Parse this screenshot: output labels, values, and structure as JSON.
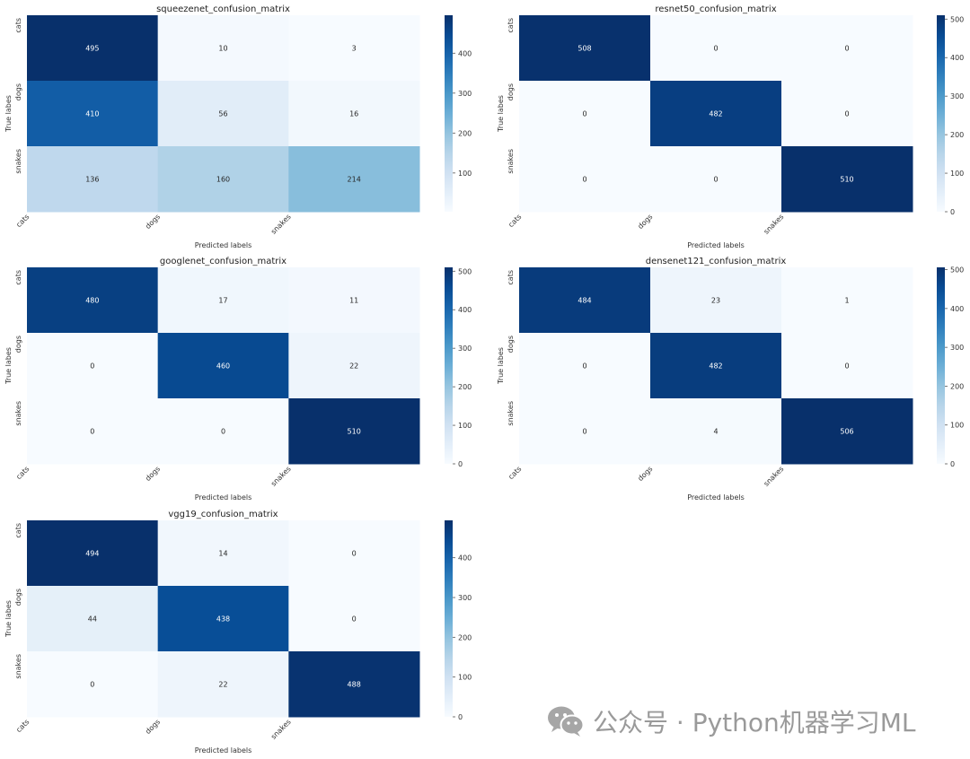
{
  "chart_data": [
    {
      "type": "heatmap",
      "title": "squeezenet_confusion_matrix",
      "xlabel": "Predicted labels",
      "ylabel": "True labes",
      "x_categories": [
        "cats",
        "dogs",
        "snakes"
      ],
      "y_categories": [
        "cats",
        "dogs",
        "snakes"
      ],
      "matrix": [
        [
          495,
          10,
          3
        ],
        [
          410,
          56,
          16
        ],
        [
          136,
          160,
          214
        ]
      ],
      "colormap": "Blues",
      "vmin": 3,
      "vmax": 495,
      "colorbar_ticks": [
        100,
        200,
        300,
        400
      ]
    },
    {
      "type": "heatmap",
      "title": "resnet50_confusion_matrix",
      "xlabel": "Predicted labels",
      "ylabel": "True labes",
      "x_categories": [
        "cats",
        "dogs",
        "snakes"
      ],
      "y_categories": [
        "cats",
        "dogs",
        "snakes"
      ],
      "matrix": [
        [
          508,
          0,
          0
        ],
        [
          0,
          482,
          0
        ],
        [
          0,
          0,
          510
        ]
      ],
      "colormap": "Blues",
      "vmin": 0,
      "vmax": 510,
      "colorbar_ticks": [
        0,
        100,
        200,
        300,
        400,
        500
      ]
    },
    {
      "type": "heatmap",
      "title": "googlenet_confusion_matrix",
      "xlabel": "Predicted labels",
      "ylabel": "True labes",
      "x_categories": [
        "cats",
        "dogs",
        "snakes"
      ],
      "y_categories": [
        "cats",
        "dogs",
        "snakes"
      ],
      "matrix": [
        [
          480,
          17,
          11
        ],
        [
          0,
          460,
          22
        ],
        [
          0,
          0,
          510
        ]
      ],
      "colormap": "Blues",
      "vmin": 0,
      "vmax": 510,
      "colorbar_ticks": [
        0,
        100,
        200,
        300,
        400,
        500
      ]
    },
    {
      "type": "heatmap",
      "title": "densenet121_confusion_matrix",
      "xlabel": "Predicted labels",
      "ylabel": "True labes",
      "x_categories": [
        "cats",
        "dogs",
        "snakes"
      ],
      "y_categories": [
        "cats",
        "dogs",
        "snakes"
      ],
      "matrix": [
        [
          484,
          23,
          1
        ],
        [
          0,
          482,
          0
        ],
        [
          0,
          4,
          506
        ]
      ],
      "colormap": "Blues",
      "vmin": 0,
      "vmax": 506,
      "colorbar_ticks": [
        0,
        100,
        200,
        300,
        400,
        500
      ]
    },
    {
      "type": "heatmap",
      "title": "vgg19_confusion_matrix",
      "xlabel": "Predicted labels",
      "ylabel": "True labes",
      "x_categories": [
        "cats",
        "dogs",
        "snakes"
      ],
      "y_categories": [
        "cats",
        "dogs",
        "snakes"
      ],
      "matrix": [
        [
          494,
          14,
          0
        ],
        [
          44,
          438,
          0
        ],
        [
          0,
          22,
          488
        ]
      ],
      "colormap": "Blues",
      "vmin": 0,
      "vmax": 494,
      "colorbar_ticks": [
        0,
        100,
        200,
        300,
        400
      ]
    }
  ],
  "watermark": {
    "text": "公众号 · Python机器学习ML",
    "icon": "wechat-icon",
    "color": "#9a9a9a"
  }
}
